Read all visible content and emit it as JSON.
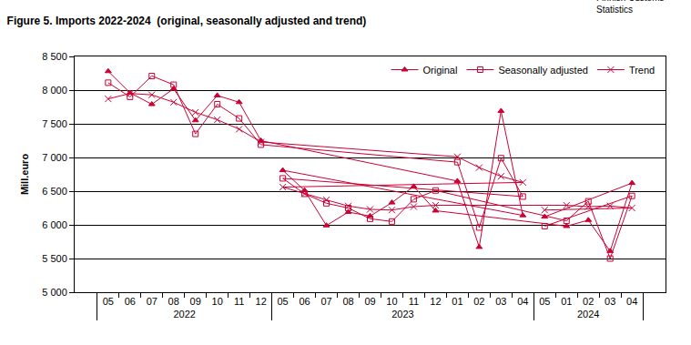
{
  "chart_data": {
    "type": "line",
    "title": "Figure 5. Imports 2022-2024  (original, seasonally adjusted and trend)",
    "source_lines": [
      "Finnish Customs",
      "Statistics"
    ],
    "y_label": "Mill.euro",
    "categories": [
      "05",
      "06",
      "07",
      "08",
      "09",
      "10",
      "11",
      "12",
      "01",
      "02",
      "03",
      "04",
      "05",
      "06",
      "07",
      "08",
      "09",
      "10",
      "11",
      "12",
      "01",
      "02",
      "03",
      "04",
      "05"
    ],
    "years": [
      "2022",
      "2022",
      "2022",
      "2022",
      "2022",
      "2022",
      "2022",
      "2022",
      "2023",
      "2023",
      "2023",
      "2023",
      "2023",
      "2023",
      "2023",
      "2023",
      "2023",
      "2023",
      "2023",
      "2023",
      "2024",
      "2024",
      "2024",
      "2024",
      "2024"
    ],
    "series": [
      {
        "name": "Original",
        "color": "#cc0033",
        "marker": "triangle",
        "line_style": "solid",
        "values": [
          8280,
          7960,
          7790,
          8020,
          7550,
          7920,
          7820,
          7250,
          6650,
          5670,
          7690,
          6140,
          6810,
          6510,
          5990,
          6190,
          6130,
          6330,
          6570,
          6210,
          5980,
          6070,
          5610,
          6620,
          6120
        ]
      },
      {
        "name": "Seasonally adjusted",
        "color": "#cc0033",
        "marker": "square-open",
        "line_style": "solid",
        "values": [
          8110,
          7900,
          8210,
          8080,
          7350,
          7790,
          7580,
          7190,
          6930,
          5960,
          6990,
          6420,
          6690,
          6460,
          6320,
          6250,
          6090,
          6050,
          6380,
          6510,
          6060,
          6350,
          5500,
          6430,
          5980
        ]
      },
      {
        "name": "Trend",
        "color": "#cc0033",
        "marker": "cross",
        "line_style": "solid",
        "values": [
          7870,
          7950,
          7930,
          7820,
          7670,
          7560,
          7420,
          7230,
          7010,
          6850,
          6720,
          6630,
          6560,
          6460,
          6370,
          6280,
          6230,
          6220,
          6270,
          6290,
          6290,
          6270,
          6280,
          6250,
          6220
        ]
      }
    ],
    "ylim": [
      5000,
      8500
    ],
    "yticks": [
      {
        "value": 5000,
        "label": "5 000"
      },
      {
        "value": 5500,
        "label": "5 500"
      },
      {
        "value": 6000,
        "label": "6 000"
      },
      {
        "value": 6500,
        "label": "6 500"
      },
      {
        "value": 7000,
        "label": "7 000"
      },
      {
        "value": 7500,
        "label": "7 500"
      },
      {
        "value": 8000,
        "label": "8 000"
      },
      {
        "value": 8500,
        "label": "8 500"
      }
    ],
    "grid": true,
    "legend": "top right"
  }
}
